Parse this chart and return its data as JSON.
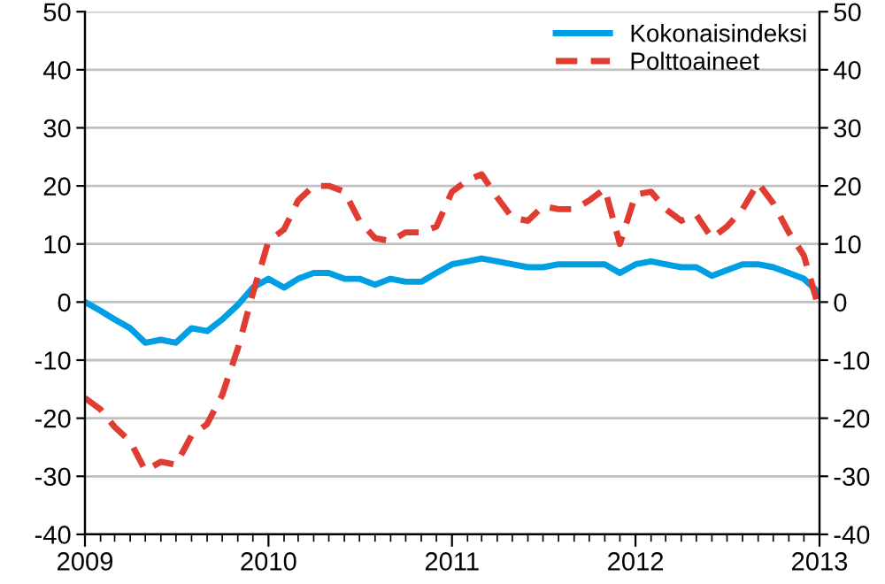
{
  "chart_data": {
    "type": "line",
    "x": [
      "2009-01",
      "2009-02",
      "2009-03",
      "2009-04",
      "2009-05",
      "2009-06",
      "2009-07",
      "2009-08",
      "2009-09",
      "2009-10",
      "2009-11",
      "2009-12",
      "2010-01",
      "2010-02",
      "2010-03",
      "2010-04",
      "2010-05",
      "2010-06",
      "2010-07",
      "2010-08",
      "2010-09",
      "2010-10",
      "2010-11",
      "2010-12",
      "2011-01",
      "2011-02",
      "2011-03",
      "2011-04",
      "2011-05",
      "2011-06",
      "2011-07",
      "2011-08",
      "2011-09",
      "2011-10",
      "2011-11",
      "2011-12",
      "2012-01",
      "2012-02",
      "2012-03",
      "2012-04",
      "2012-05",
      "2012-06",
      "2012-07",
      "2012-08",
      "2012-09",
      "2012-10",
      "2012-11",
      "2012-12",
      "2013-01"
    ],
    "series": [
      {
        "name": "Kokonaisindeksi",
        "color": "#009fe3",
        "line_style": "solid",
        "values": [
          0,
          -1.5,
          -3,
          -4.5,
          -7,
          -6.5,
          -7,
          -4.5,
          -5,
          -3,
          -0.5,
          2.5,
          4,
          2.5,
          4,
          5,
          5,
          4,
          4,
          3,
          4,
          3.5,
          3.5,
          5,
          6.5,
          7,
          7.5,
          7,
          6.5,
          6,
          6,
          6.5,
          6.5,
          6.5,
          6.5,
          5,
          6.5,
          7,
          6.5,
          6,
          6,
          4.5,
          5.5,
          6.5,
          6.5,
          6,
          5,
          4,
          1.5
        ]
      },
      {
        "name": "Polttoaineet",
        "color": "#e03c31",
        "line_style": "dashed",
        "values": [
          -16.5,
          -18.5,
          -21.5,
          -24,
          -29,
          -27.5,
          -28,
          -23,
          -21,
          -16,
          -8,
          1.5,
          10.5,
          12.5,
          17.5,
          20,
          20,
          19,
          14,
          11,
          10.5,
          12,
          12,
          13,
          19,
          21,
          22,
          18,
          14.5,
          14,
          16.5,
          16,
          16,
          17.5,
          19.5,
          10,
          18.5,
          19,
          16,
          14,
          15,
          11,
          13,
          16,
          20.5,
          17,
          12,
          8,
          -1.5
        ]
      }
    ],
    "xlim": [
      "2009-01",
      "2013-01"
    ],
    "xticks": [
      {
        "value": "2009-01",
        "label": "2009"
      },
      {
        "value": "2010-01",
        "label": "2010"
      },
      {
        "value": "2011-01",
        "label": "2011"
      },
      {
        "value": "2012-01",
        "label": "2012"
      },
      {
        "value": "2013-01",
        "label": "2013"
      }
    ],
    "ylim": [
      -40,
      50
    ],
    "yticks": [
      -40,
      -30,
      -20,
      -10,
      0,
      10,
      20,
      30,
      40,
      50
    ],
    "y2lim": [
      -40,
      50
    ],
    "y2ticks": [
      -40,
      -30,
      -20,
      -10,
      0,
      10,
      20,
      30,
      40,
      50
    ],
    "grid": "y",
    "legend": "top right",
    "marker": "none"
  }
}
